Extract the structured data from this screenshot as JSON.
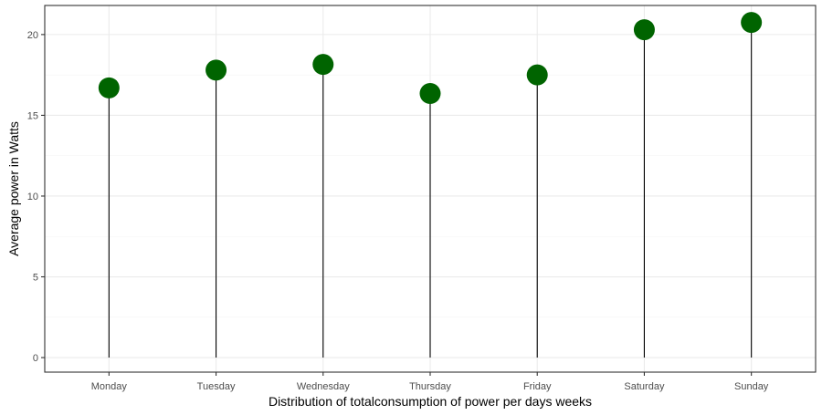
{
  "chart_data": {
    "type": "lollipop",
    "title": "",
    "xlabel": "Distribution of totalconsumption of power per days weeks",
    "ylabel": "Average power in Watts",
    "categories": [
      "Monday",
      "Tuesday",
      "Wednesday",
      "Thursday",
      "Friday",
      "Saturday",
      "Sunday"
    ],
    "values": [
      16.7,
      17.8,
      18.15,
      16.35,
      17.5,
      20.3,
      20.75
    ],
    "ylim": [
      -0.9,
      21.8
    ],
    "yticks": [
      0,
      5,
      10,
      15,
      20
    ],
    "ytick_labels": [
      "0",
      "5",
      "10",
      "15",
      "20"
    ],
    "grid": true,
    "legend": "none",
    "colors": {
      "point": "#006400",
      "stem": "#000000",
      "grid_major": "#ebebeb",
      "grid_minor": "#f5f5f5",
      "panel_border": "#333333",
      "tick_text": "#4d4d4d",
      "axis_title": "#000000"
    }
  }
}
